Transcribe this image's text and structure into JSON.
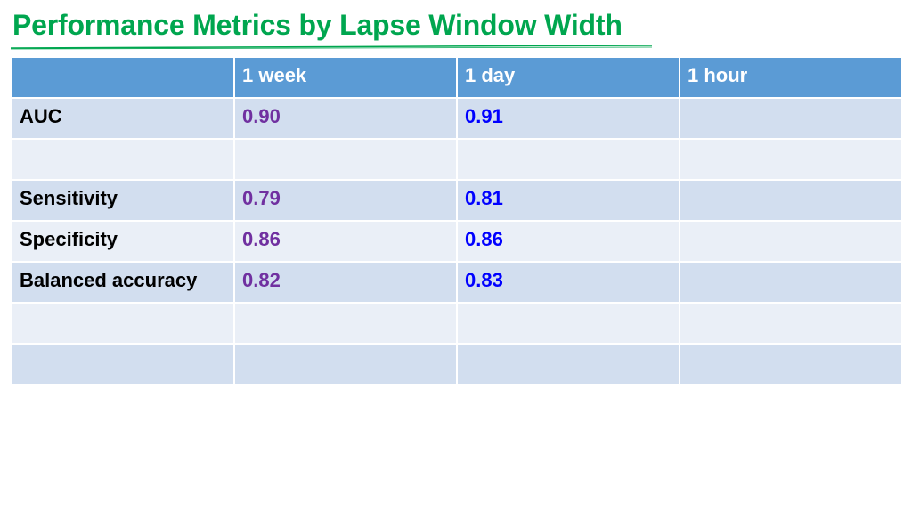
{
  "slide": {
    "title": "Performance Metrics by Lapse Window Width",
    "colors": {
      "title": "#00a64f",
      "header_bg": "#5b9bd5",
      "row_odd_bg": "#d2deef",
      "row_even_bg": "#eaeff7",
      "week_values": "#7030a0",
      "day_values": "#0000ff"
    }
  },
  "table": {
    "headers": [
      "",
      "1 week",
      "1 day",
      "1 hour"
    ],
    "rows": [
      {
        "label": "AUC",
        "week": "0.90",
        "day": "0.91",
        "hour": ""
      },
      {
        "label": "",
        "week": "",
        "day": "",
        "hour": ""
      },
      {
        "label": "Sensitivity",
        "week": "0.79",
        "day": "0.81",
        "hour": ""
      },
      {
        "label": "Specificity",
        "week": "0.86",
        "day": "0.86",
        "hour": ""
      },
      {
        "label": "Balanced accuracy",
        "week": "0.82",
        "day": "0.83",
        "hour": ""
      },
      {
        "label": "",
        "week": "",
        "day": "",
        "hour": ""
      },
      {
        "label": "",
        "week": "",
        "day": "",
        "hour": ""
      }
    ]
  }
}
